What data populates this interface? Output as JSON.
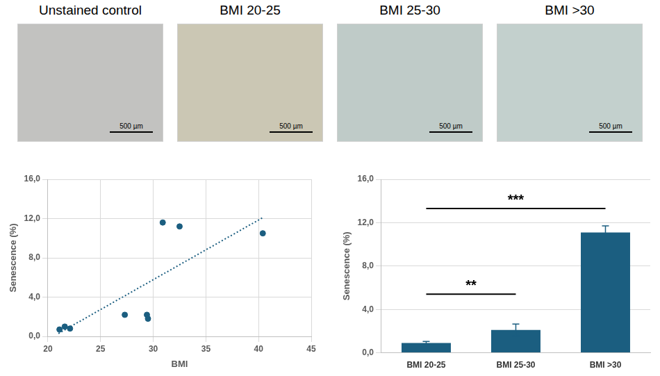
{
  "panels": [
    {
      "title": "Unstained control",
      "scale_bar": "500 µm"
    },
    {
      "title": "BMI 20-25",
      "scale_bar": "500 µm"
    },
    {
      "title": "BMI 25-30",
      "scale_bar": "500 µm"
    },
    {
      "title": "BMI >30",
      "scale_bar": "500 µm"
    }
  ],
  "chart_data": [
    {
      "type": "scatter",
      "x_label": "BMI",
      "y_label": "Senescence (%)",
      "xlim": [
        20,
        45
      ],
      "xticks": [
        20,
        25,
        30,
        35,
        40,
        45
      ],
      "ylim": [
        0,
        16
      ],
      "yticks": [
        {
          "value": 0,
          "label": "0,0"
        },
        {
          "value": 4,
          "label": "4,0"
        },
        {
          "value": 8,
          "label": "8,0"
        },
        {
          "value": 12,
          "label": "12,0"
        },
        {
          "value": 16,
          "label": "16,0"
        }
      ],
      "grid": true,
      "series": [
        {
          "type": "scatter",
          "marker": "circle",
          "color": "#1b5e80",
          "x": [
            21.1,
            21.6,
            22.1,
            27.3,
            29.4,
            29.5,
            30.9,
            32.5,
            40.4
          ],
          "values": [
            0.7,
            1.0,
            0.8,
            2.2,
            2.2,
            1.8,
            11.6,
            11.2,
            10.5
          ]
        },
        {
          "type": "line",
          "line_style": "dotted",
          "color": "#1b5e80",
          "x": [
            21.0,
            40.4
          ],
          "values": [
            0.3,
            12.1
          ]
        }
      ]
    },
    {
      "type": "bar",
      "y_label": "Senescence (%)",
      "categories": [
        "BMI 20-25",
        "BMI 25-30",
        "BMI >30"
      ],
      "values": [
        0.9,
        2.1,
        11.1
      ],
      "error": [
        0.15,
        0.55,
        0.6
      ],
      "color": "#1b5e80",
      "ylim": [
        0,
        16
      ],
      "yticks": [
        {
          "value": 0,
          "label": "0,0"
        },
        {
          "value": 4,
          "label": "4,0"
        },
        {
          "value": 8,
          "label": "8,0"
        },
        {
          "value": 12,
          "label": "12,0"
        },
        {
          "value": 16,
          "label": "16,0"
        }
      ],
      "grid": true,
      "annotations": [
        {
          "text": "**",
          "from": "BMI 20-25",
          "to": "BMI 25-30",
          "y": 5.4
        },
        {
          "text": "***",
          "from": "BMI 20-25",
          "to": "BMI >30",
          "y": 13.3
        }
      ]
    }
  ]
}
